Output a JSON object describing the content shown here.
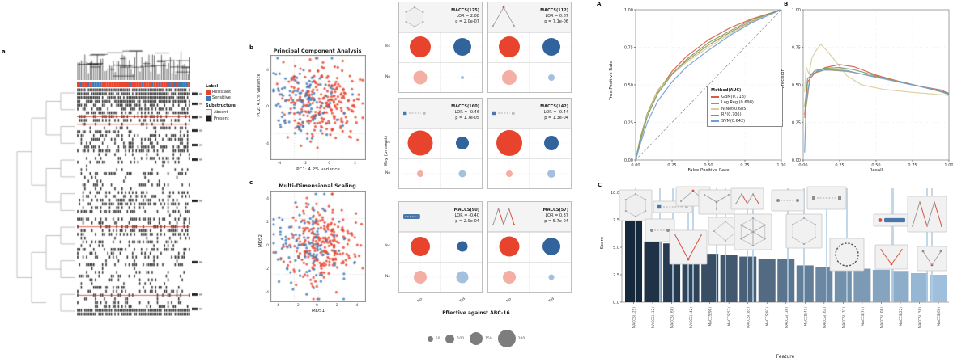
{
  "figure": {
    "background": "#ffffff"
  },
  "chart_data": [
    {
      "id": "substructure-heatmap",
      "type": "heatmap",
      "panel_letter": "a",
      "legend": {
        "label_title": "Label",
        "label_classes": [
          {
            "name": "Resistant",
            "color": "#e8432d"
          },
          {
            "name": "Sensitive",
            "color": "#3c78b4"
          }
        ],
        "cell_title": "Substructure",
        "cell_classes": [
          {
            "name": "Absent",
            "color": "#f5f5f5"
          },
          {
            "name": "Present",
            "color": "#1f1f1f"
          }
        ]
      },
      "colors": {
        "present": "#1f1f1f",
        "absent": "#ffffff",
        "separator": "#cc3a2a"
      }
    },
    {
      "id": "pca",
      "type": "scatter",
      "panel_letter": "b",
      "title": "Principal Component Analysis",
      "xlabel": "PC1: 4.2% variance",
      "ylabel": "PC2: 4.0% variance",
      "xticks": [
        "-4",
        "-2",
        "0",
        "2"
      ],
      "yticks": [
        "4",
        "0",
        "-4"
      ],
      "series": [
        {
          "name": "Resistant",
          "color": "#e8432d",
          "n": 245
        },
        {
          "name": "Sensitive",
          "color": "#3c78b4",
          "n": 115
        }
      ]
    },
    {
      "id": "mds",
      "type": "scatter",
      "panel_letter": "c",
      "title": "Multi-Dimensional Scaling",
      "xlabel": "MDS1",
      "ylabel": "MDS2",
      "xticks": [
        "-4",
        "-2",
        "0",
        "2",
        "4"
      ],
      "yticks": [
        "4",
        "2",
        "0",
        "-2",
        "-4"
      ],
      "series": [
        {
          "name": "Resistant",
          "color": "#e8432d",
          "n": 245
        },
        {
          "name": "Sensitive",
          "color": "#3c78b4",
          "n": 115
        }
      ]
    },
    {
      "id": "key-bubbles",
      "type": "bubble",
      "xlabel": "Effective against ABC-16",
      "ylabel": "Key (present)",
      "row_ticks": [
        "Yes",
        "No"
      ],
      "col_ticks": [
        "No",
        "Yes"
      ],
      "colors": {
        "top_left": "#e8432d",
        "top_right": "#31639c",
        "bottom_left": "#f4afa4",
        "bottom_right": "#a3c0dc"
      },
      "panels": [
        {
          "feature": "MACCS(125)",
          "lor": "LOR = 2.08",
          "p": "p = 2.0e-07",
          "motif": "hexring",
          "radii": [
            13,
            11,
            8.5,
            2
          ]
        },
        {
          "feature": "MACCS(112)",
          "lor": "LOR = 0.87",
          "p": "p = 7.1e-06",
          "motif": "chevron",
          "radii": [
            13,
            11,
            9,
            4
          ]
        },
        {
          "feature": "MACCS(160)",
          "lor": "LOR = -0.46",
          "p": "p = 1.7e-05",
          "motif": "chipblue",
          "radii": [
            15.5,
            8,
            4,
            4.5
          ]
        },
        {
          "feature": "MACCS(142)",
          "lor": "LOR = -0.44",
          "p": "p = 1.3e-04",
          "motif": "chipblue",
          "radii": [
            16,
            9,
            4,
            5
          ]
        },
        {
          "feature": "MACCS(90)",
          "lor": "LOR = -0.40",
          "p": "p = 2.9e-04",
          "motif": "chipsolid",
          "radii": [
            12,
            6.5,
            8,
            7.5
          ]
        },
        {
          "feature": "MACCS(57)",
          "lor": "LOR = 0.37",
          "p": "p = 5.7e-04",
          "motif": "zigzag",
          "radii": [
            12.5,
            11,
            8,
            3.5
          ]
        }
      ],
      "size_legend": {
        "values": [
          "50",
          "100",
          "150",
          "200"
        ],
        "color": "#7d7d7d"
      }
    },
    {
      "id": "roc",
      "type": "line",
      "panel_letter": "A",
      "xlabel": "False Positive Rate",
      "ylabel": "True Positive Rate",
      "xticks": [
        "0.00",
        "0.25",
        "0.50",
        "0.75",
        "1.00"
      ],
      "yticks": [
        "0.00",
        "0.25",
        "0.50",
        "0.75",
        "1.00"
      ],
      "legend_title": "Method(AUC)",
      "diagonal": true,
      "series": [
        {
          "name": "GBM(0.713)",
          "color": "#dd5c49",
          "points": [
            [
              0,
              0
            ],
            [
              0.03,
              0.13
            ],
            [
              0.08,
              0.3
            ],
            [
              0.15,
              0.45
            ],
            [
              0.25,
              0.59
            ],
            [
              0.35,
              0.69
            ],
            [
              0.5,
              0.8
            ],
            [
              0.65,
              0.88
            ],
            [
              0.8,
              0.94
            ],
            [
              1,
              1
            ]
          ]
        },
        {
          "name": "Log.Reg.(0.698)",
          "color": "#a3914f",
          "points": [
            [
              0,
              0
            ],
            [
              0.03,
              0.14
            ],
            [
              0.08,
              0.31
            ],
            [
              0.15,
              0.46
            ],
            [
              0.25,
              0.575
            ],
            [
              0.35,
              0.66
            ],
            [
              0.5,
              0.765
            ],
            [
              0.65,
              0.85
            ],
            [
              0.8,
              0.925
            ],
            [
              1,
              1
            ]
          ]
        },
        {
          "name": "N.Net(0.685)",
          "color": "#d9cf9a",
          "points": [
            [
              0,
              0
            ],
            [
              0.03,
              0.12
            ],
            [
              0.08,
              0.3
            ],
            [
              0.15,
              0.455
            ],
            [
              0.25,
              0.57
            ],
            [
              0.35,
              0.65
            ],
            [
              0.5,
              0.75
            ],
            [
              0.65,
              0.84
            ],
            [
              0.8,
              0.92
            ],
            [
              1,
              1
            ]
          ]
        },
        {
          "name": "RF(0.706)",
          "color": "#7f9e63",
          "points": [
            [
              0,
              0
            ],
            [
              0.03,
              0.12
            ],
            [
              0.08,
              0.29
            ],
            [
              0.15,
              0.44
            ],
            [
              0.25,
              0.57
            ],
            [
              0.35,
              0.67
            ],
            [
              0.5,
              0.78
            ],
            [
              0.65,
              0.86
            ],
            [
              0.8,
              0.935
            ],
            [
              1,
              1
            ]
          ]
        },
        {
          "name": "SVM(0.642)",
          "color": "#6f9fd8",
          "points": [
            [
              0,
              0
            ],
            [
              0.03,
              0.1
            ],
            [
              0.08,
              0.25
            ],
            [
              0.15,
              0.39
            ],
            [
              0.25,
              0.52
            ],
            [
              0.35,
              0.62
            ],
            [
              0.5,
              0.73
            ],
            [
              0.65,
              0.83
            ],
            [
              0.8,
              0.915
            ],
            [
              1,
              1
            ]
          ]
        }
      ]
    },
    {
      "id": "pr",
      "type": "line",
      "panel_letter": "B",
      "xlabel": "Recall",
      "ylabel": "Precision",
      "xticks": [
        "0.00",
        "0.25",
        "0.50",
        "0.75",
        "1.00"
      ],
      "yticks": [
        "0.00",
        "0.25",
        "0.50",
        "0.75",
        "1.00"
      ],
      "series": [
        {
          "name": "N.Net",
          "color": "#d9cf9a",
          "points": [
            [
              0.01,
              0.45
            ],
            [
              0.02,
              0.62
            ],
            [
              0.04,
              0.57
            ],
            [
              0.06,
              0.68
            ],
            [
              0.09,
              0.73
            ],
            [
              0.12,
              0.77
            ],
            [
              0.16,
              0.73
            ],
            [
              0.22,
              0.66
            ],
            [
              0.3,
              0.56
            ],
            [
              0.4,
              0.5
            ],
            [
              0.55,
              0.47
            ],
            [
              0.75,
              0.45
            ],
            [
              1,
              0.43
            ]
          ]
        },
        {
          "name": "GBM",
          "color": "#dd5c49",
          "points": [
            [
              0.01,
              0.3
            ],
            [
              0.03,
              0.52
            ],
            [
              0.08,
              0.58
            ],
            [
              0.15,
              0.615
            ],
            [
              0.25,
              0.635
            ],
            [
              0.35,
              0.62
            ],
            [
              0.5,
              0.565
            ],
            [
              0.65,
              0.525
            ],
            [
              0.8,
              0.49
            ],
            [
              0.95,
              0.465
            ],
            [
              1,
              0.44
            ]
          ]
        },
        {
          "name": "RF",
          "color": "#7f9e63",
          "points": [
            [
              0.01,
              0.35
            ],
            [
              0.03,
              0.54
            ],
            [
              0.08,
              0.595
            ],
            [
              0.15,
              0.61
            ],
            [
              0.25,
              0.615
            ],
            [
              0.35,
              0.6
            ],
            [
              0.5,
              0.56
            ],
            [
              0.65,
              0.52
            ],
            [
              0.8,
              0.49
            ],
            [
              1,
              0.445
            ]
          ]
        },
        {
          "name": "Log.Reg.",
          "color": "#a3914f",
          "points": [
            [
              0.01,
              0.28
            ],
            [
              0.05,
              0.57
            ],
            [
              0.15,
              0.6
            ],
            [
              0.3,
              0.59
            ],
            [
              0.5,
              0.555
            ],
            [
              0.7,
              0.515
            ],
            [
              1,
              0.44
            ]
          ]
        },
        {
          "name": "SVM",
          "color": "#6f9fd8",
          "points": [
            [
              0.01,
              0.05
            ],
            [
              0.02,
              0.4
            ],
            [
              0.05,
              0.56
            ],
            [
              0.1,
              0.595
            ],
            [
              0.2,
              0.6
            ],
            [
              0.3,
              0.595
            ],
            [
              0.45,
              0.56
            ],
            [
              0.6,
              0.53
            ],
            [
              0.75,
              0.5
            ],
            [
              0.9,
              0.47
            ],
            [
              1,
              0.435
            ]
          ]
        }
      ]
    },
    {
      "id": "feature-importance",
      "type": "bar",
      "panel_letter": "C",
      "xlabel": "Feature",
      "ylabel": "Score",
      "ylim": [
        0,
        10
      ],
      "yticks": [
        "0.0",
        "2.5",
        "5.0",
        "7.5",
        "10.0"
      ],
      "categories": [
        "MACCS(125)",
        "MACCS(112)",
        "MACCS(160)",
        "MACCS(142)",
        "MACCS(90)",
        "MACCS(57)",
        "MACCS(185)",
        "MACCS(97)",
        "MACCS(139)",
        "MACCS(41)",
        "MACCS(164)",
        "MACCS(131)",
        "MACCS(74)",
        "MACCS(108)",
        "MACCS(22)",
        "MACCS(150)",
        "MACCS(66)"
      ],
      "values": [
        7.6,
        5.5,
        5.35,
        4.75,
        4.4,
        4.3,
        4.15,
        3.95,
        3.9,
        3.35,
        3.2,
        3.15,
        3.05,
        2.95,
        2.85,
        2.65,
        2.5
      ],
      "bar_color_start": "#16283c",
      "bar_color_end": "#9fc0dd"
    }
  ]
}
